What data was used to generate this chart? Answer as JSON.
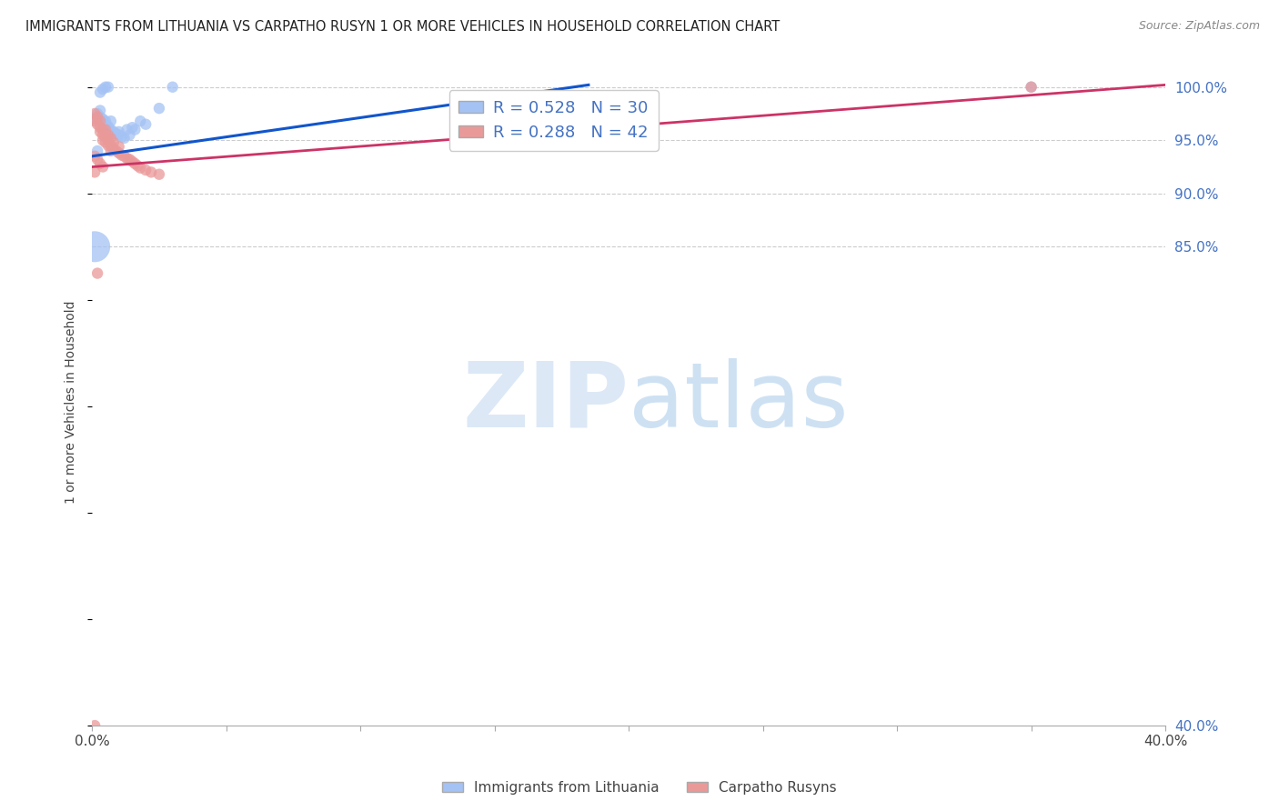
{
  "title": "IMMIGRANTS FROM LITHUANIA VS CARPATHO RUSYN 1 OR MORE VEHICLES IN HOUSEHOLD CORRELATION CHART",
  "source": "Source: ZipAtlas.com",
  "ylabel": "1 or more Vehicles in Household",
  "xlim": [
    0.0,
    0.4
  ],
  "ylim": [
    0.4,
    1.008
  ],
  "xtick_positions": [
    0.0,
    0.05,
    0.1,
    0.15,
    0.2,
    0.25,
    0.3,
    0.35,
    0.4
  ],
  "xticklabels": [
    "0.0%",
    "",
    "",
    "",
    "",
    "",
    "",
    "",
    "40.0%"
  ],
  "ytick_positions": [
    1.0,
    0.95,
    0.9,
    0.85,
    0.4
  ],
  "ytick_labels": [
    "100.0%",
    "95.0%",
    "90.0%",
    "85.0%",
    "40.0%"
  ],
  "blue_R": 0.528,
  "blue_N": 30,
  "pink_R": 0.288,
  "pink_N": 42,
  "blue_color": "#a4c2f4",
  "pink_color": "#ea9999",
  "blue_line_color": "#1155cc",
  "pink_line_color": "#cc3366",
  "legend_label_blue": "Immigrants from Lithuania",
  "legend_label_pink": "Carpatho Rusyns",
  "watermark_zip": "ZIP",
  "watermark_atlas": "atlas",
  "blue_trend_x": [
    0.0,
    0.185
  ],
  "blue_trend_y": [
    0.935,
    1.002
  ],
  "pink_trend_x": [
    0.0,
    0.4
  ],
  "pink_trend_y": [
    0.925,
    1.002
  ],
  "blue_x": [
    0.001,
    0.002,
    0.003,
    0.003,
    0.004,
    0.005,
    0.005,
    0.006,
    0.007,
    0.007,
    0.008,
    0.009,
    0.01,
    0.01,
    0.011,
    0.012,
    0.013,
    0.014,
    0.015,
    0.016,
    0.018,
    0.02,
    0.025,
    0.03,
    0.003,
    0.004,
    0.005,
    0.006,
    0.002,
    0.001
  ],
  "blue_y": [
    0.97,
    0.975,
    0.978,
    0.972,
    0.97,
    0.968,
    0.965,
    0.963,
    0.968,
    0.96,
    0.958,
    0.956,
    0.958,
    0.955,
    0.953,
    0.952,
    0.96,
    0.955,
    0.962,
    0.96,
    0.968,
    0.965,
    0.98,
    1.0,
    0.995,
    0.998,
    1.0,
    1.0,
    0.94,
    0.85
  ],
  "blue_sizes": [
    80,
    80,
    80,
    80,
    80,
    80,
    80,
    80,
    80,
    80,
    80,
    80,
    80,
    80,
    80,
    80,
    80,
    80,
    80,
    80,
    80,
    80,
    80,
    80,
    80,
    80,
    80,
    80,
    80,
    600
  ],
  "pink_x": [
    0.001,
    0.001,
    0.002,
    0.002,
    0.003,
    0.003,
    0.003,
    0.004,
    0.004,
    0.004,
    0.005,
    0.005,
    0.005,
    0.006,
    0.006,
    0.006,
    0.007,
    0.007,
    0.007,
    0.008,
    0.008,
    0.009,
    0.01,
    0.01,
    0.011,
    0.012,
    0.013,
    0.014,
    0.015,
    0.016,
    0.017,
    0.018,
    0.02,
    0.022,
    0.025,
    0.001,
    0.002,
    0.003,
    0.004,
    0.001,
    0.002,
    0.001
  ],
  "pink_y": [
    0.975,
    0.968,
    0.972,
    0.965,
    0.968,
    0.962,
    0.958,
    0.96,
    0.955,
    0.95,
    0.96,
    0.953,
    0.948,
    0.955,
    0.95,
    0.945,
    0.952,
    0.945,
    0.94,
    0.948,
    0.942,
    0.94,
    0.938,
    0.944,
    0.936,
    0.935,
    0.933,
    0.932,
    0.93,
    0.928,
    0.926,
    0.924,
    0.922,
    0.92,
    0.918,
    0.935,
    0.932,
    0.928,
    0.925,
    0.92,
    0.825,
    0.4
  ],
  "pink_sizes": [
    80,
    80,
    80,
    80,
    80,
    80,
    80,
    80,
    80,
    80,
    80,
    80,
    80,
    80,
    80,
    80,
    80,
    80,
    80,
    80,
    80,
    80,
    80,
    80,
    80,
    80,
    80,
    80,
    80,
    80,
    80,
    80,
    80,
    80,
    80,
    80,
    80,
    80,
    80,
    80,
    80,
    80
  ],
  "far_blue_x": [
    0.35
  ],
  "far_blue_y": [
    1.0
  ],
  "far_pink_x": [
    0.35
  ],
  "far_pink_y": [
    1.0
  ]
}
